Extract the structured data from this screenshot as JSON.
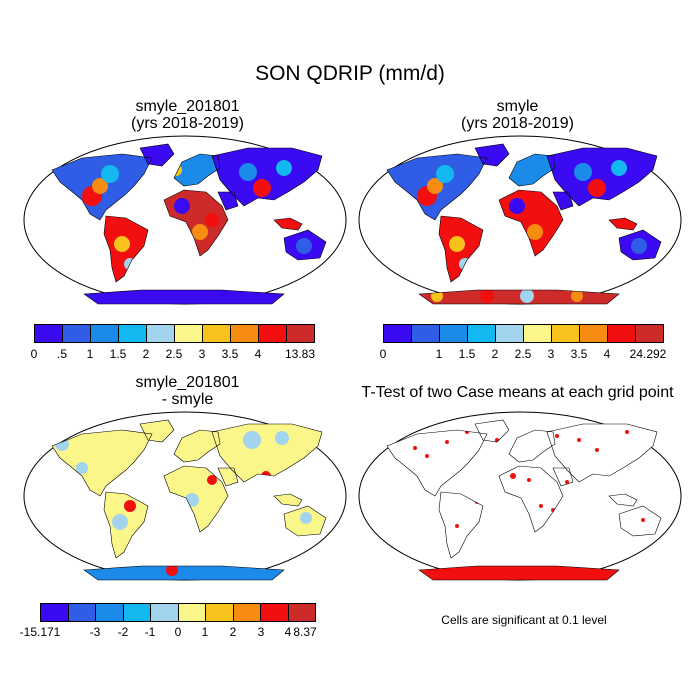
{
  "figure": {
    "main_title": "SON QDRIP (mm/d)",
    "colors": [
      "#3a0bf2",
      "#2f5de6",
      "#1c8ae9",
      "#12b8ef",
      "#a3d4ee",
      "#faf68a",
      "#f7c21c",
      "#f68d12",
      "#f20f0f",
      "#cd2a2a"
    ],
    "panels": [
      {
        "title_line1": "smyle_201801",
        "title_line2": "(yrs 2018-2019)"
      },
      {
        "title_line1": "smyle",
        "title_line2": "(yrs 2018-2019)"
      },
      {
        "title_line1": "smyle_201801",
        "title_line2": "- smyle"
      },
      {
        "title_line1": "T-Test of two Case means at each grid point",
        "title_line2": ""
      }
    ],
    "colorbars": [
      {
        "labels": [
          "0",
          ".5",
          "1",
          "1.5",
          "2",
          "2.5",
          "3",
          "3.5",
          "4",
          "13.83"
        ]
      },
      {
        "labels": [
          "0",
          "1",
          "1.5",
          "2",
          "2.5",
          "3",
          "3.5",
          "4",
          "24.292"
        ]
      },
      {
        "labels": [
          "-15.171",
          "-3",
          "-2",
          "-1",
          "0",
          "1",
          "2",
          "3",
          "4",
          "8.37"
        ]
      }
    ],
    "note": "Cells are significant at 0.1 level"
  }
}
